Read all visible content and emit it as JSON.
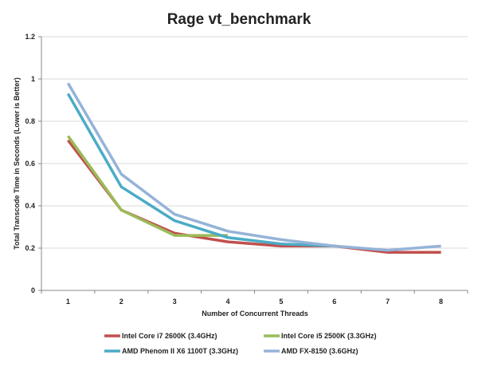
{
  "chart_data": {
    "type": "line",
    "title": "Rage vt_benchmark",
    "xlabel": "Number of Concurrent Threads",
    "ylabel": "Total Transcode Time in Seconds (Lower is Better)",
    "x": [
      1,
      2,
      3,
      4,
      5,
      6,
      7,
      8
    ],
    "xticks": [
      "1",
      "2",
      "3",
      "4",
      "5",
      "6",
      "7",
      "8"
    ],
    "ylim": [
      0,
      1.2
    ],
    "yticks": [
      "0",
      "0.2",
      "0.4",
      "0.6",
      "0.8",
      "1",
      "1.2"
    ],
    "ytick_values": [
      0,
      0.2,
      0.4,
      0.6,
      0.8,
      1.0,
      1.2
    ],
    "grid": true,
    "legend_position": "bottom",
    "series": [
      {
        "name": "Intel Core i7 2600K (3.4GHz)",
        "color": "#c0504d",
        "values": [
          0.71,
          0.38,
          0.27,
          0.23,
          0.21,
          0.21,
          0.18,
          0.18
        ]
      },
      {
        "name": "Intel Core i5 2500K (3.3GHz)",
        "color": "#9bbb59",
        "values": [
          0.73,
          0.38,
          0.26,
          0.26,
          null,
          null,
          null,
          null
        ]
      },
      {
        "name": "AMD Phenom II X6 1100T (3.3GHz)",
        "color": "#4bacc6",
        "values": [
          0.93,
          0.49,
          0.33,
          0.25,
          0.22,
          0.21,
          null,
          null
        ]
      },
      {
        "name": "AMD FX-8150 (3.6GHz)",
        "color": "#95b3d7",
        "values": [
          0.98,
          0.55,
          0.36,
          0.28,
          0.24,
          0.21,
          0.19,
          0.21
        ]
      }
    ]
  }
}
